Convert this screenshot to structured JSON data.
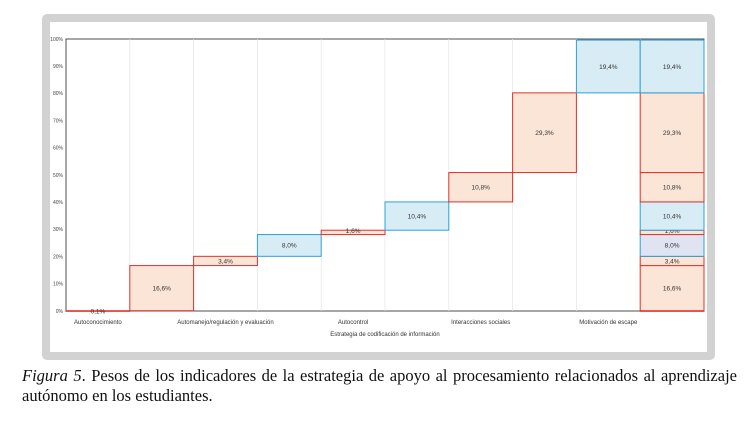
{
  "caption": {
    "figure_label": "Figura 5",
    "text": ". Pesos de los indicadores de la estrategia de apoyo al procesamiento relacionados al aprendizaje autónomo en los estudiantes."
  },
  "chart_data": {
    "type": "bar",
    "subtype": "waterfall",
    "title": "",
    "xlabel": "Estrategia de codificación de información",
    "ylabel": "",
    "ylim": [
      0,
      100
    ],
    "y_ticks": [
      "0%",
      "10%",
      "20%",
      "30%",
      "40%",
      "50%",
      "60%",
      "70%",
      "80%",
      "90%",
      "100%"
    ],
    "x_labels": [
      "Autoconocimiento",
      "Automanejo/regulación y evaluación",
      "Autocontrol",
      "Interacciones sociales",
      "Motivación de escape"
    ],
    "bars": [
      {
        "label": "0,1%",
        "start": 0,
        "value": 0.1,
        "color": "red"
      },
      {
        "label": "16,6%",
        "start": 0.1,
        "value": 16.6,
        "color": "red"
      },
      {
        "label": "3,4%",
        "start": 16.7,
        "value": 3.4,
        "color": "red"
      },
      {
        "label": "8,0%",
        "start": 20.1,
        "value": 8.0,
        "color": "blue"
      },
      {
        "label": "1,6%",
        "start": 28.1,
        "value": 1.6,
        "color": "red"
      },
      {
        "label": "10,4%",
        "start": 29.7,
        "value": 10.4,
        "color": "blue"
      },
      {
        "label": "10,8%",
        "start": 40.1,
        "value": 10.8,
        "color": "red"
      },
      {
        "label": "29,3%",
        "start": 50.9,
        "value": 29.3,
        "color": "red"
      },
      {
        "label": "19,4%",
        "start": 80.2,
        "value": 19.4,
        "color": "blue"
      }
    ],
    "total_bar": [
      {
        "label": "0,1%",
        "start": 0,
        "value": 0.1,
        "color": "red"
      },
      {
        "label": "16,6%",
        "start": 0.1,
        "value": 16.6,
        "color": "red"
      },
      {
        "label": "3,4%",
        "start": 16.7,
        "value": 3.4,
        "color": "red"
      },
      {
        "label": "8,0%",
        "start": 20.1,
        "value": 8.0,
        "color": "purple"
      },
      {
        "label": "1,6%",
        "start": 28.1,
        "value": 1.6,
        "color": "red"
      },
      {
        "label": "10,4%",
        "start": 29.7,
        "value": 10.4,
        "color": "blue"
      },
      {
        "label": "10,8%",
        "start": 40.1,
        "value": 10.8,
        "color": "red"
      },
      {
        "label": "29,3%",
        "start": 50.9,
        "value": 29.3,
        "color": "red"
      },
      {
        "label": "19,4%",
        "start": 80.2,
        "value": 19.4,
        "color": "blue"
      }
    ],
    "grid": true,
    "legend": "none",
    "colors": {
      "red_fill": "#fbe5d6",
      "red_stroke": "#e0302a",
      "blue_fill": "#d7ecf5",
      "blue_stroke": "#2aa3d6",
      "purple_fill": "#dfe3f2",
      "purple_stroke": "#2aa3d6"
    }
  }
}
